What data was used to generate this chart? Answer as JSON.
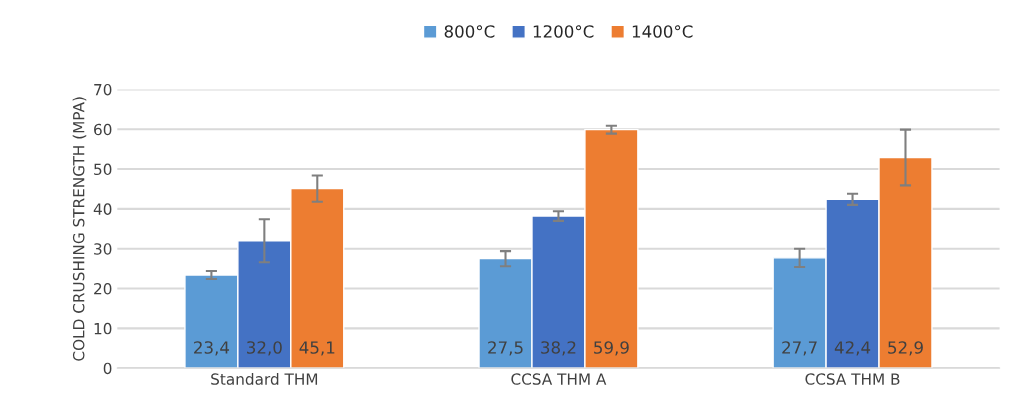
{
  "chart_data": {
    "type": "bar",
    "ylabel": "COLD CRUSHING STRENGTH (MPA)",
    "categories": [
      "Standard THM",
      "CCSA THM A",
      "CCSA THM B"
    ],
    "series": [
      {
        "name": "800°C",
        "color": "#5b9bd5",
        "values": [
          23.4,
          27.5,
          27.7
        ],
        "errors": [
          1.0,
          1.9,
          2.3
        ],
        "value_labels": [
          "23,4",
          "27,5",
          "27,7"
        ]
      },
      {
        "name": "1200°C",
        "color": "#4472c4",
        "values": [
          32.0,
          38.2,
          42.4
        ],
        "errors": [
          5.4,
          1.2,
          1.4
        ],
        "value_labels": [
          "32,0",
          "38,2",
          "42,4"
        ]
      },
      {
        "name": "1400°C",
        "color": "#ed7d31",
        "values": [
          45.1,
          59.9,
          52.9
        ],
        "errors": [
          3.3,
          1.0,
          7.0
        ],
        "value_labels": [
          "45,1",
          "59,9",
          "52,9"
        ]
      }
    ],
    "ylim": [
      0,
      70
    ],
    "yticks": [
      0,
      10,
      20,
      30,
      40,
      50,
      60,
      70
    ],
    "grid": "y",
    "legend": "top"
  }
}
